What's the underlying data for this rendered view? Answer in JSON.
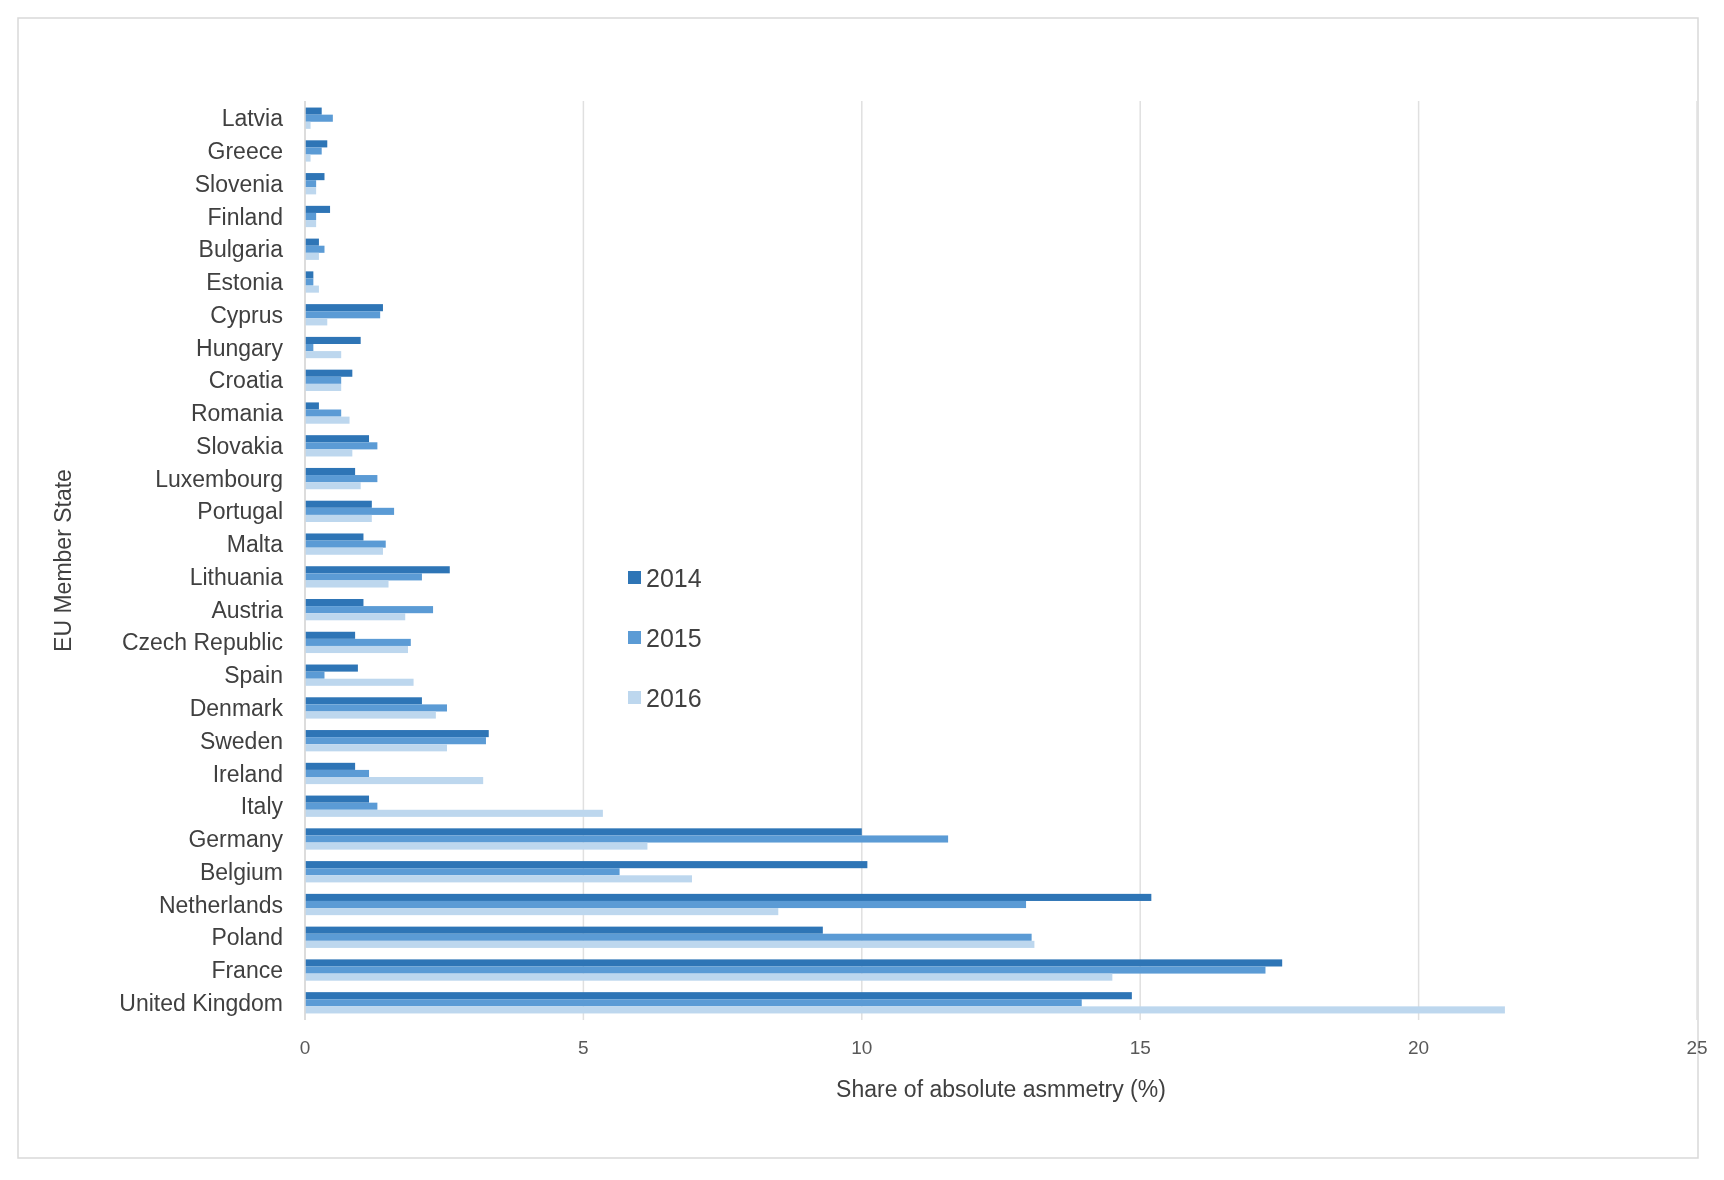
{
  "chart_data": {
    "type": "bar",
    "orientation": "horizontal",
    "xlabel": "Share of absolute asmmetry (%)",
    "ylabel": "EU Member State",
    "categories": [
      "Latvia",
      "Greece",
      "Slovenia",
      "Finland",
      "Bulgaria",
      "Estonia",
      "Cyprus",
      "Hungary",
      "Croatia",
      "Romania",
      "Slovakia",
      "Luxembourg",
      "Portugal",
      "Malta",
      "Lithuania",
      "Austria",
      "Czech Republic",
      "Spain",
      "Denmark",
      "Sweden",
      "Ireland",
      "Italy",
      "Germany",
      "Belgium",
      "Netherlands",
      "Poland",
      "France",
      "United Kingdom"
    ],
    "series": [
      {
        "name": "2014",
        "color": "#2e75b6",
        "values": [
          0.3,
          0.4,
          0.35,
          0.45,
          0.25,
          0.15,
          1.4,
          1.0,
          0.85,
          0.25,
          1.15,
          0.9,
          1.2,
          1.05,
          2.6,
          1.05,
          0.9,
          0.95,
          2.1,
          3.3,
          0.9,
          1.15,
          10.0,
          10.1,
          15.2,
          9.3,
          17.55,
          14.85
        ]
      },
      {
        "name": "2015",
        "color": "#5b9bd5",
        "values": [
          0.5,
          0.3,
          0.2,
          0.2,
          0.35,
          0.15,
          1.35,
          0.15,
          0.65,
          0.65,
          1.3,
          1.3,
          1.6,
          1.45,
          2.1,
          2.3,
          1.9,
          0.35,
          2.55,
          3.25,
          1.15,
          1.3,
          11.55,
          5.65,
          12.95,
          13.05,
          17.25,
          13.95
        ]
      },
      {
        "name": "2016",
        "color": "#bdd7ee",
        "values": [
          0.1,
          0.1,
          0.2,
          0.2,
          0.25,
          0.25,
          0.4,
          0.65,
          0.65,
          0.8,
          0.85,
          1.0,
          1.2,
          1.4,
          1.5,
          1.8,
          1.85,
          1.95,
          2.35,
          2.55,
          3.2,
          5.35,
          6.15,
          6.95,
          8.5,
          13.1,
          14.5,
          21.55
        ]
      }
    ],
    "xlim": [
      0,
      25
    ],
    "xticks": [
      0,
      5,
      10,
      15,
      20,
      25
    ],
    "grid": "x",
    "legend": "left"
  }
}
